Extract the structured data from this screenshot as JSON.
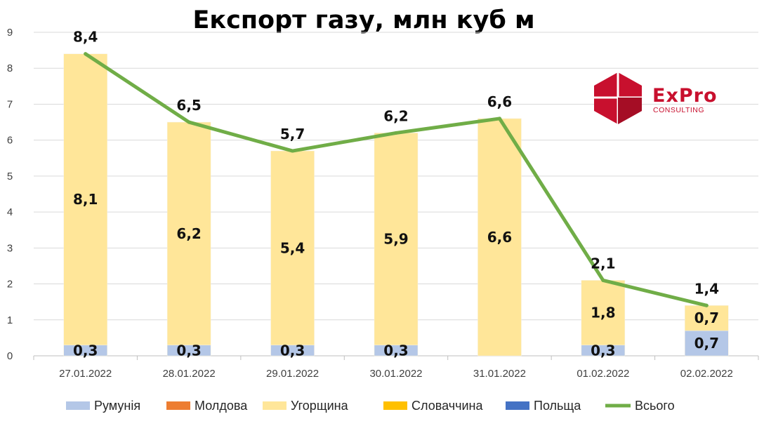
{
  "logo": {
    "name_ex": "Ex",
    "name_pro": "Pro",
    "sub": "CONSULTING",
    "color": "#c8102e"
  },
  "chart_data": {
    "type": "bar",
    "stacked": true,
    "title": "Експорт газу, млн куб м",
    "xlabel": "",
    "ylabel": "",
    "ylim": [
      0,
      9
    ],
    "yticks": [
      0,
      1,
      2,
      3,
      4,
      5,
      6,
      7,
      8,
      9
    ],
    "grid": true,
    "legend_position": "bottom",
    "categories": [
      "27.01.2022",
      "28.01.2022",
      "29.01.2022",
      "30.01.2022",
      "31.01.2022",
      "01.02.2022",
      "02.02.2022"
    ],
    "series": [
      {
        "name": "Румунія",
        "kind": "bar",
        "color": "#b4c7e7",
        "values": [
          0.3,
          0.3,
          0.3,
          0.3,
          0,
          0.3,
          0.7
        ],
        "labels": [
          "0,3",
          "0,3",
          "0,3",
          "0,3",
          "",
          "0,3",
          "0,7"
        ]
      },
      {
        "name": "Молдова",
        "kind": "bar",
        "color": "#ed7d31",
        "values": [
          0,
          0,
          0,
          0,
          0,
          0,
          0
        ],
        "labels": [
          "",
          "",
          "",
          "",
          "",
          "",
          ""
        ]
      },
      {
        "name": "Угорщина",
        "kind": "bar",
        "color": "#ffe699",
        "values": [
          8.1,
          6.2,
          5.4,
          5.9,
          6.6,
          1.8,
          0.7
        ],
        "labels": [
          "8,1",
          "6,2",
          "5,4",
          "5,9",
          "6,6",
          "1,8",
          "0,7"
        ]
      },
      {
        "name": "Словаччина",
        "kind": "bar",
        "color": "#ffc000",
        "values": [
          0,
          0,
          0,
          0,
          0,
          0,
          0
        ],
        "labels": [
          "",
          "",
          "",
          "",
          "",
          "",
          ""
        ]
      },
      {
        "name": "Польща",
        "kind": "bar",
        "color": "#4472c4",
        "values": [
          0,
          0,
          0,
          0,
          0,
          0,
          0
        ],
        "labels": [
          "",
          "",
          "",
          "",
          "",
          "",
          ""
        ]
      },
      {
        "name": "Всього",
        "kind": "line",
        "color": "#70ad47",
        "values": [
          8.4,
          6.5,
          5.7,
          6.2,
          6.6,
          2.1,
          1.4
        ],
        "labels": [
          "8,4",
          "6,5",
          "5,7",
          "6,2",
          "6,6",
          "2,1",
          "1,4"
        ]
      }
    ]
  }
}
